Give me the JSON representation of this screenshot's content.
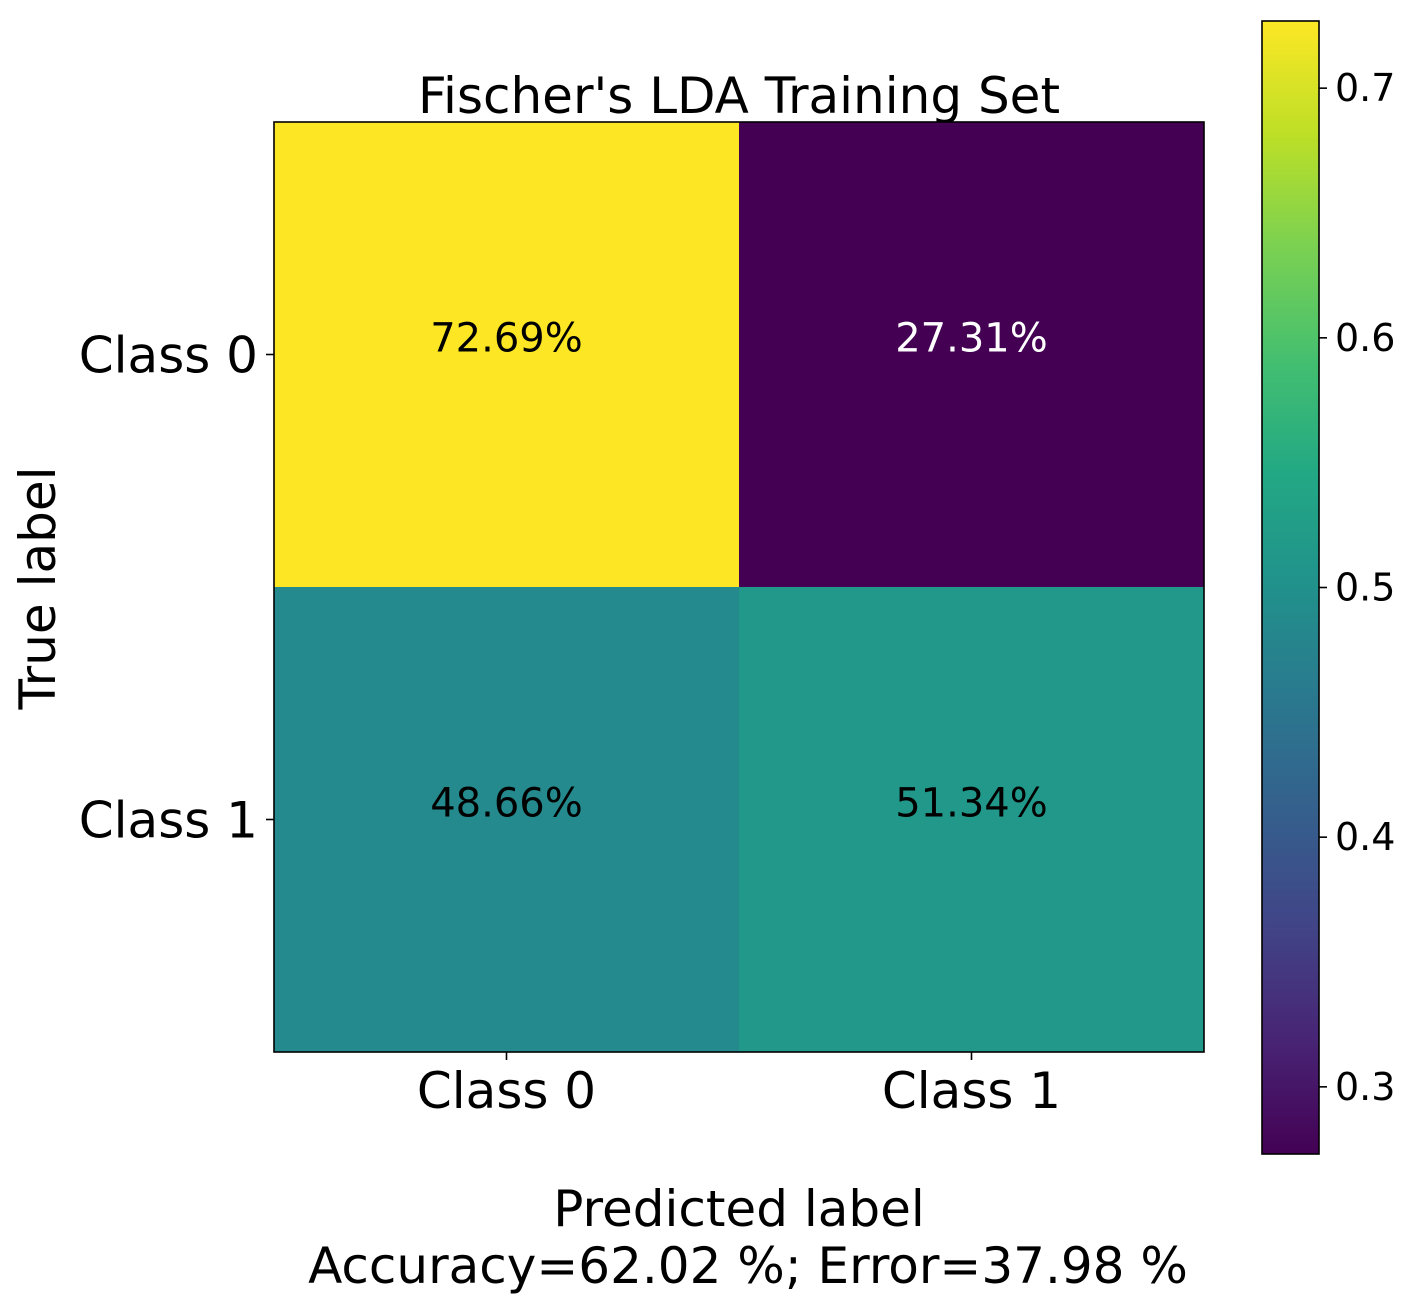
{
  "chart_data": {
    "type": "heatmap",
    "title": "Fischer's LDA Training Set",
    "xlabel": "Predicted label",
    "xlabel_line2": "Accuracy=62.02 %; Error=37.98 %",
    "ylabel": "True label",
    "x_categories": [
      "Class 0",
      "Class 1"
    ],
    "y_categories": [
      "Class 0",
      "Class 1"
    ],
    "values": [
      [
        0.7269,
        0.2731
      ],
      [
        0.4866,
        0.5134
      ]
    ],
    "cell_labels": [
      [
        "72.69%",
        "27.31%"
      ],
      [
        "48.66%",
        "51.34%"
      ]
    ],
    "cell_label_colors": [
      [
        "#000000",
        "#ffffff"
      ],
      [
        "#000000",
        "#000000"
      ]
    ],
    "colormap": "viridis",
    "colorbar": {
      "range": [
        0.2731,
        0.7269
      ],
      "ticks": [
        0.3,
        0.4,
        0.5,
        0.6,
        0.7
      ],
      "tick_labels": [
        "0.3",
        "0.4",
        "0.5",
        "0.6",
        "0.7"
      ]
    }
  }
}
